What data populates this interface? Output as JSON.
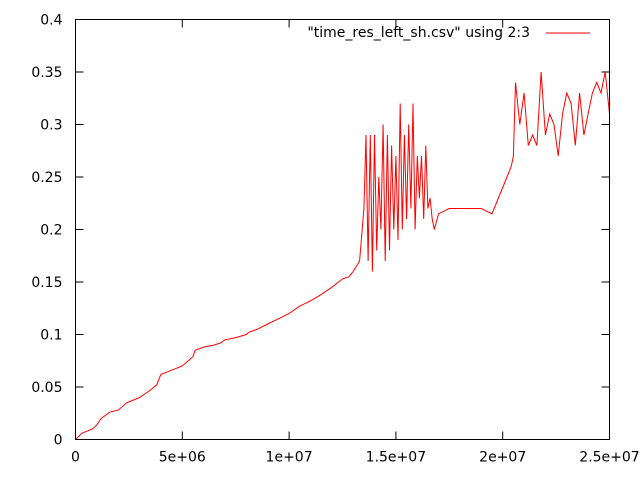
{
  "chart_data": {
    "type": "line",
    "title": "",
    "xlabel": "",
    "ylabel": "",
    "xlim": [
      0,
      25000000
    ],
    "ylim": [
      0,
      0.4
    ],
    "x_ticks": [
      0,
      5000000,
      10000000,
      15000000,
      20000000,
      25000000
    ],
    "x_tick_labels": [
      "0",
      "5e+06",
      "1e+07",
      "1.5e+07",
      "2e+07",
      "2.5e+07"
    ],
    "y_ticks": [
      0,
      0.05,
      0.1,
      0.15,
      0.2,
      0.25,
      0.3,
      0.35,
      0.4
    ],
    "y_tick_labels": [
      "0",
      "0.05",
      "0.1",
      "0.15",
      "0.2",
      "0.25",
      "0.3",
      "0.35",
      "0.4"
    ],
    "grid": false,
    "legend_position": "top-right",
    "series": [
      {
        "name": "\"time_res_left_sh.csv\" using 2:3",
        "color": "#ff0000",
        "x": [
          0,
          300000,
          800000,
          1000000,
          1200000,
          1600000,
          2000000,
          2400000,
          3000000,
          3500000,
          3800000,
          3900000,
          4000000,
          4500000,
          5000000,
          5500000,
          5600000,
          6000000,
          6500000,
          6800000,
          7000000,
          7500000,
          8000000,
          8100000,
          8500000,
          9000000,
          9500000,
          10000000,
          10500000,
          11000000,
          11500000,
          12000000,
          12500000,
          12800000,
          13000000,
          13300000,
          13500000,
          13600000,
          13700000,
          13800000,
          13900000,
          14000000,
          14100000,
          14200000,
          14300000,
          14400000,
          14500000,
          14600000,
          14700000,
          14800000,
          14900000,
          15000000,
          15100000,
          15200000,
          15300000,
          15400000,
          15500000,
          15600000,
          15700000,
          15800000,
          15900000,
          16000000,
          16100000,
          16200000,
          16300000,
          16400000,
          16500000,
          16600000,
          16700000,
          16800000,
          17000000,
          17500000,
          18000000,
          18500000,
          19000000,
          19500000,
          19800000,
          20000000,
          20200000,
          20400000,
          20500000,
          20600000,
          20800000,
          21000000,
          21200000,
          21400000,
          21600000,
          21800000,
          22000000,
          22200000,
          22400000,
          22600000,
          22800000,
          23000000,
          23200000,
          23400000,
          23600000,
          23800000,
          24000000,
          24200000,
          24400000,
          24600000,
          24800000,
          25000000
        ],
        "y": [
          0,
          0.006,
          0.01,
          0.014,
          0.02,
          0.026,
          0.028,
          0.035,
          0.04,
          0.047,
          0.052,
          0.057,
          0.062,
          0.066,
          0.07,
          0.079,
          0.085,
          0.088,
          0.09,
          0.092,
          0.095,
          0.097,
          0.1,
          0.102,
          0.105,
          0.11,
          0.115,
          0.12,
          0.127,
          0.132,
          0.138,
          0.145,
          0.153,
          0.155,
          0.16,
          0.17,
          0.22,
          0.29,
          0.17,
          0.29,
          0.16,
          0.29,
          0.18,
          0.25,
          0.2,
          0.3,
          0.17,
          0.29,
          0.18,
          0.28,
          0.2,
          0.27,
          0.19,
          0.32,
          0.2,
          0.29,
          0.21,
          0.3,
          0.22,
          0.32,
          0.2,
          0.27,
          0.23,
          0.27,
          0.21,
          0.28,
          0.22,
          0.23,
          0.21,
          0.2,
          0.215,
          0.22,
          0.22,
          0.22,
          0.22,
          0.215,
          0.23,
          0.24,
          0.25,
          0.26,
          0.27,
          0.34,
          0.3,
          0.33,
          0.28,
          0.29,
          0.28,
          0.35,
          0.29,
          0.31,
          0.3,
          0.27,
          0.31,
          0.33,
          0.32,
          0.28,
          0.33,
          0.29,
          0.31,
          0.33,
          0.34,
          0.33,
          0.35,
          0.31
        ]
      }
    ]
  }
}
